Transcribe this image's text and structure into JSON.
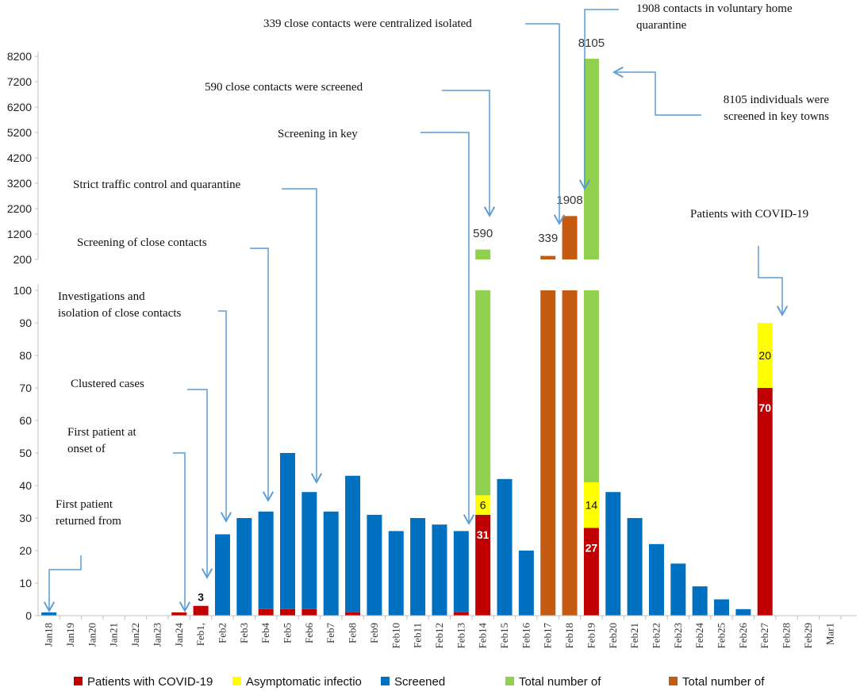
{
  "chart_data": {
    "type": "bar",
    "stacked": true,
    "broken_y_axis": true,
    "y_ticks_lower": [
      0,
      10,
      20,
      30,
      40,
      50,
      60,
      70,
      80,
      90,
      100
    ],
    "y_ticks_upper": [
      200,
      1200,
      2200,
      3200,
      4200,
      5200,
      6200,
      7200,
      8200
    ],
    "categories": [
      "Jan18",
      "Jan19",
      "Jan20",
      "Jan21",
      "Jan22",
      "Jan23",
      "Jan24",
      "Feb1,",
      "Feb2",
      "Feb3",
      "Feb4",
      "Feb5",
      "Feb6",
      "Feb7",
      "Feb8",
      "Feb9",
      "Feb10",
      "Feb11",
      "Feb12",
      "Feb13",
      "Feb14",
      "Feb15",
      "Feb16",
      "Feb17",
      "Feb18",
      "Feb19",
      "Feb20",
      "Feb21",
      "Feb22",
      "Feb23",
      "Feb24",
      "Feb25",
      "Feb26",
      "Feb27",
      "Feb28",
      "Feb29",
      "Mar1"
    ],
    "colors": {
      "patients": "#c00000",
      "asymptomatic": "#ffff00",
      "screened": "#0070c0",
      "total_green": "#92d050",
      "total_orange": "#c55a11"
    },
    "series": [
      {
        "key": "patients",
        "name": "Patients with COVID-19",
        "values": [
          0,
          0,
          0,
          0,
          0,
          0,
          1,
          3,
          0,
          0,
          2,
          2,
          2,
          0,
          1,
          0,
          0,
          0,
          0,
          1,
          31,
          0,
          0,
          0,
          0,
          27,
          0,
          0,
          0,
          0,
          0,
          0,
          0,
          70,
          0,
          0,
          0
        ]
      },
      {
        "key": "asymptomatic",
        "name": "Asymptomatic infectio",
        "values": [
          0,
          0,
          0,
          0,
          0,
          0,
          0,
          0,
          0,
          0,
          0,
          0,
          0,
          0,
          0,
          0,
          0,
          0,
          0,
          0,
          6,
          0,
          0,
          0,
          0,
          14,
          0,
          0,
          0,
          0,
          0,
          0,
          0,
          20,
          0,
          0,
          0
        ]
      },
      {
        "key": "screened",
        "name": "Screened",
        "values": [
          1,
          0,
          0,
          0,
          0,
          0,
          0,
          0,
          25,
          30,
          30,
          48,
          36,
          32,
          42,
          31,
          26,
          30,
          28,
          25,
          0,
          42,
          20,
          0,
          0,
          0,
          38,
          30,
          22,
          16,
          9,
          5,
          2,
          0,
          0,
          0,
          0
        ]
      },
      {
        "key": "total_green",
        "name": "Total number of",
        "values": [
          0,
          0,
          0,
          0,
          0,
          0,
          0,
          0,
          0,
          0,
          0,
          0,
          0,
          0,
          0,
          0,
          0,
          0,
          0,
          0,
          590,
          0,
          0,
          0,
          0,
          8105,
          0,
          0,
          0,
          0,
          0,
          0,
          0,
          0,
          0,
          0,
          0
        ]
      },
      {
        "key": "total_orange",
        "name": "Total number of",
        "values": [
          0,
          0,
          0,
          0,
          0,
          0,
          0,
          0,
          0,
          0,
          0,
          0,
          0,
          0,
          0,
          0,
          0,
          0,
          0,
          0,
          0,
          0,
          0,
          339,
          1908,
          0,
          0,
          0,
          0,
          0,
          0,
          0,
          0,
          0,
          0,
          0,
          0
        ]
      }
    ],
    "data_labels": [
      {
        "category": "Feb1,",
        "text": "3"
      },
      {
        "category": "Feb14",
        "text": "31"
      },
      {
        "category": "Feb14",
        "text": "6"
      },
      {
        "category": "Feb14",
        "text": "590"
      },
      {
        "category": "Feb17",
        "text": "339"
      },
      {
        "category": "Feb18",
        "text": "1908"
      },
      {
        "category": "Feb19",
        "text": "27"
      },
      {
        "category": "Feb19",
        "text": "14"
      },
      {
        "category": "Feb19",
        "text": "8105"
      },
      {
        "category": "Feb27",
        "text": "70"
      },
      {
        "category": "Feb27",
        "text": "20"
      }
    ],
    "annotations": [
      {
        "lines": [
          "First patient",
          "returned from"
        ],
        "target": "Jan18"
      },
      {
        "lines": [
          "First patient at",
          "onset of"
        ],
        "target": "Jan24"
      },
      {
        "lines": [
          "Clustered cases"
        ],
        "target": "Feb1,"
      },
      {
        "lines": [
          "Investigations and",
          "isolation of close contacts"
        ],
        "target": "Feb2"
      },
      {
        "lines": [
          "Screening of  close contacts"
        ],
        "target": "Feb4"
      },
      {
        "lines": [
          "Strict traffic control and quarantine"
        ],
        "target": "Feb6"
      },
      {
        "lines": [
          "Screening in key"
        ],
        "target": "Feb13"
      },
      {
        "lines": [
          "590 close contacts were screened"
        ],
        "target": "Feb14"
      },
      {
        "lines": [
          "339 close contacts were centralized isolated"
        ],
        "target": "Feb17"
      },
      {
        "lines": [
          "1908 contacts in voluntary home",
          "quarantine"
        ],
        "target": "Feb18"
      },
      {
        "lines": [
          "8105 individuals were",
          "screened in key towns"
        ],
        "target": "Feb19"
      },
      {
        "lines": [
          "Patients with COVID-19"
        ],
        "target": "Feb27"
      }
    ],
    "legend_position": "bottom"
  }
}
